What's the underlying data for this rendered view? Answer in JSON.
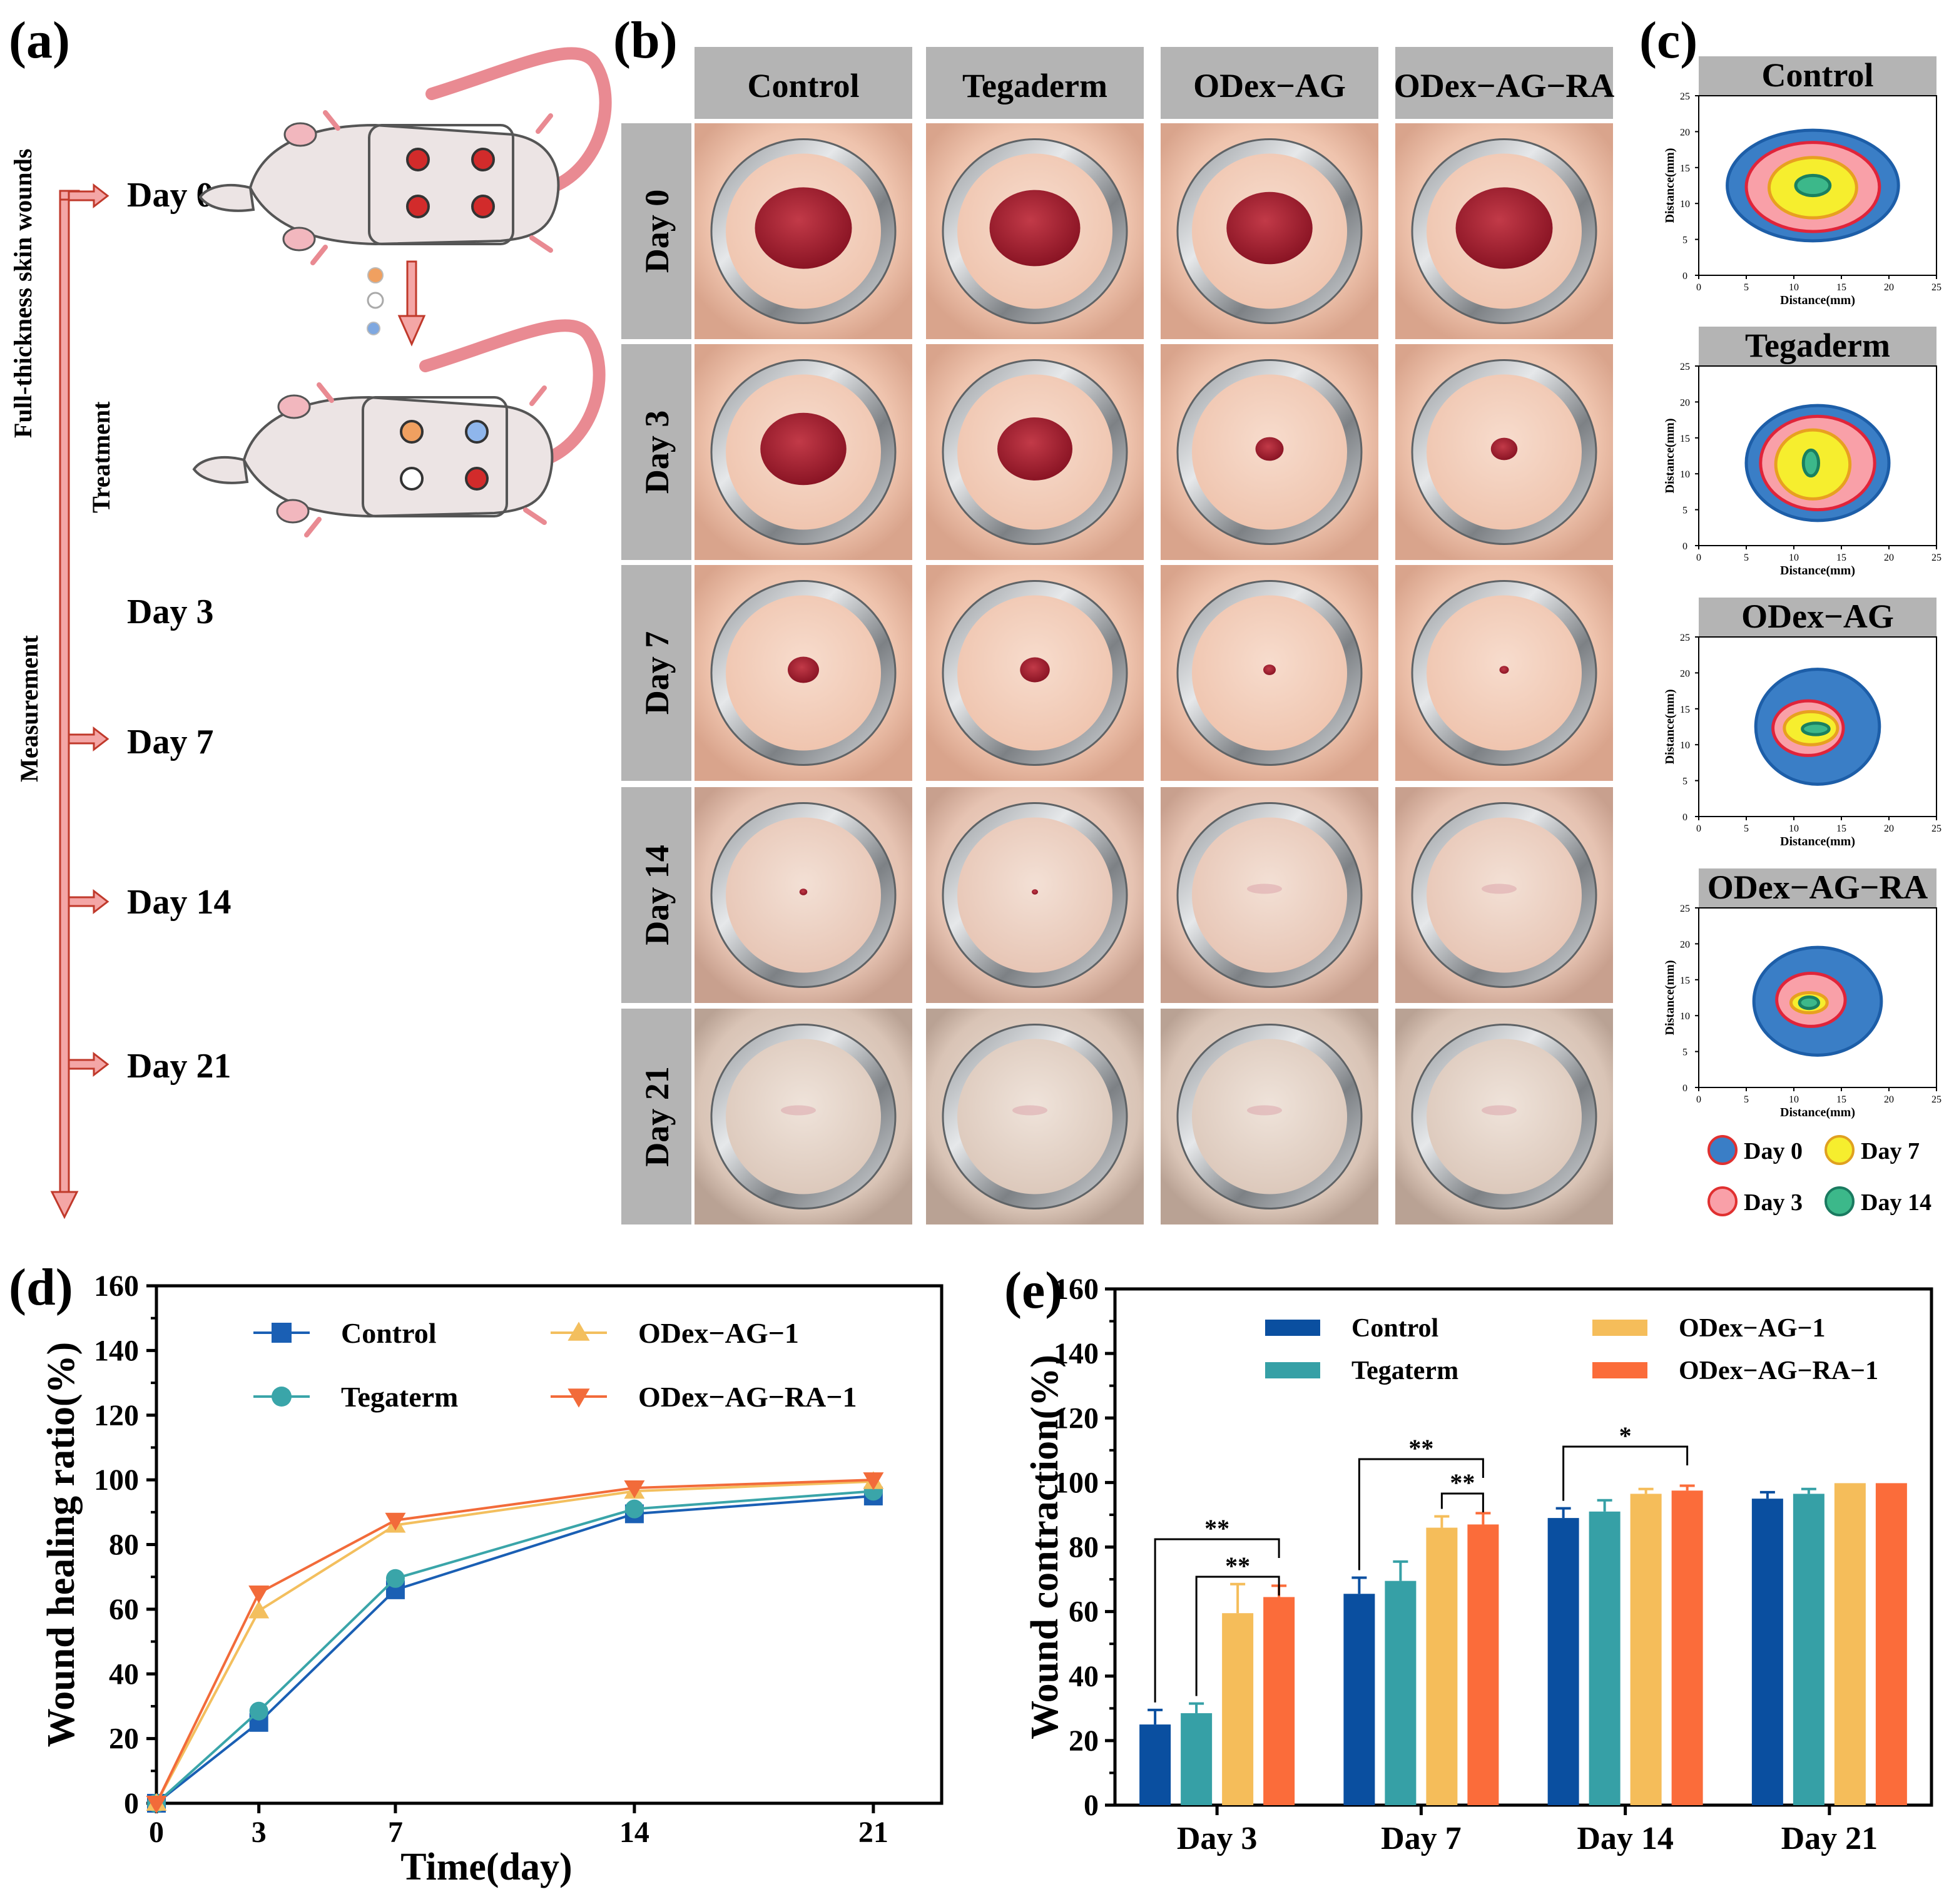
{
  "panel_labels": {
    "a": "(a)",
    "b": "(b)",
    "c": "(c)",
    "d": "(d)",
    "e": "(e)"
  },
  "timeline": {
    "title": "Full-thickness skin wounds",
    "treatment": "Treatment",
    "measurement": "Measurement",
    "days": [
      "Day 0",
      "Day 3",
      "Day 7",
      "Day 14",
      "Day 21"
    ]
  },
  "photo_grid": {
    "columns": [
      "Control",
      "Tegaderm",
      "ODex−AG",
      "ODex−AG−RA"
    ],
    "rows": [
      "Day 0",
      "Day 3",
      "Day 7",
      "Day 14",
      "Day 21"
    ]
  },
  "colors": {
    "control": "#0a4fa0",
    "tegaterm": "#36a0a6",
    "odex_ag": "#f5bd5a",
    "odex_ag_ra": "#fb6c3a",
    "line_control": "#1a5fb4",
    "line_tegaterm": "#3aa5a9",
    "line_odex_ag": "#f3bf5e",
    "line_odex_ag_ra": "#f26b3a",
    "contour_day0": "#3a7ec6",
    "contour_day3": "#f9a0a8",
    "contour_day7": "#f6ee2e",
    "contour_day14": "#3cb88a",
    "header_gray": "#b4b4b4",
    "arrow_pink": "#f4a6a6",
    "arrow_stroke": "#c0392b"
  },
  "contour_maps": {
    "panels": [
      "Control",
      "Tegaderm",
      "ODex−AG",
      "ODex−AG−RA"
    ],
    "x_axis_label": "Distance(mm)",
    "y_axis_label": "Distance(mm)",
    "ticks": [
      "0",
      "5",
      "10",
      "15",
      "20",
      "25"
    ],
    "y_ticks": [
      "25",
      "20",
      "15",
      "10",
      "5",
      "0"
    ],
    "legend": [
      "Day 0",
      "Day 7",
      "Day 3",
      "Day 14"
    ]
  },
  "chart_data": [
    {
      "type": "line",
      "panel": "(d)",
      "xlabel": "Time(day)",
      "ylabel": "Wound healing ratio(%)",
      "x": [
        0,
        3,
        7,
        14,
        21
      ],
      "xlim": [
        0,
        23
      ],
      "ylim": [
        0,
        160
      ],
      "xticks": [
        "0",
        "3",
        "7",
        "14",
        "21"
      ],
      "yticks": [
        "0",
        "20",
        "40",
        "60",
        "80",
        "100",
        "120",
        "140",
        "160"
      ],
      "series": [
        {
          "name": "Control",
          "marker": "square",
          "values": [
            0,
            25,
            66,
            89.5,
            95
          ]
        },
        {
          "name": "Tegaterm",
          "marker": "circle",
          "values": [
            0,
            28.5,
            69.5,
            91,
            96.5
          ]
        },
        {
          "name": "ODex−AG−1",
          "marker": "triangle-up",
          "values": [
            0,
            59.5,
            86,
            96.5,
            99.5
          ]
        },
        {
          "name": "ODex−AG−RA−1",
          "marker": "triangle-down",
          "values": [
            0,
            65,
            87.5,
            97.5,
            100
          ]
        }
      ]
    },
    {
      "type": "bar",
      "panel": "(e)",
      "xlabel": "",
      "ylabel": "Wound contraction(%)",
      "categories": [
        "Day 3",
        "Day 7",
        "Day 14",
        "Day 21"
      ],
      "ylim": [
        0,
        160
      ],
      "yticks": [
        "0",
        "20",
        "40",
        "60",
        "80",
        "100",
        "120",
        "140",
        "160"
      ],
      "series": [
        {
          "name": "Control",
          "values": [
            25,
            65.5,
            89,
            95
          ],
          "errors": [
            4.5,
            5,
            3,
            2
          ]
        },
        {
          "name": "Tegaterm",
          "values": [
            28.5,
            69.5,
            91,
            96.5
          ],
          "errors": [
            3,
            6,
            3.5,
            1.5
          ]
        },
        {
          "name": "ODex−AG−1",
          "values": [
            59.5,
            86,
            96.5,
            99.8
          ],
          "errors": [
            9,
            3.5,
            1.5,
            0
          ]
        },
        {
          "name": "ODex−AG−RA−1",
          "values": [
            64.5,
            87,
            97.5,
            99.8
          ],
          "errors": [
            3.5,
            3.5,
            1.5,
            0
          ]
        }
      ],
      "significance": [
        {
          "category": "Day 3",
          "label": "**"
        },
        {
          "category": "Day 3",
          "label": "**"
        },
        {
          "category": "Day 7",
          "label": "**"
        },
        {
          "category": "Day 7",
          "label": "**"
        },
        {
          "category": "Day 14",
          "label": "*"
        }
      ]
    }
  ]
}
